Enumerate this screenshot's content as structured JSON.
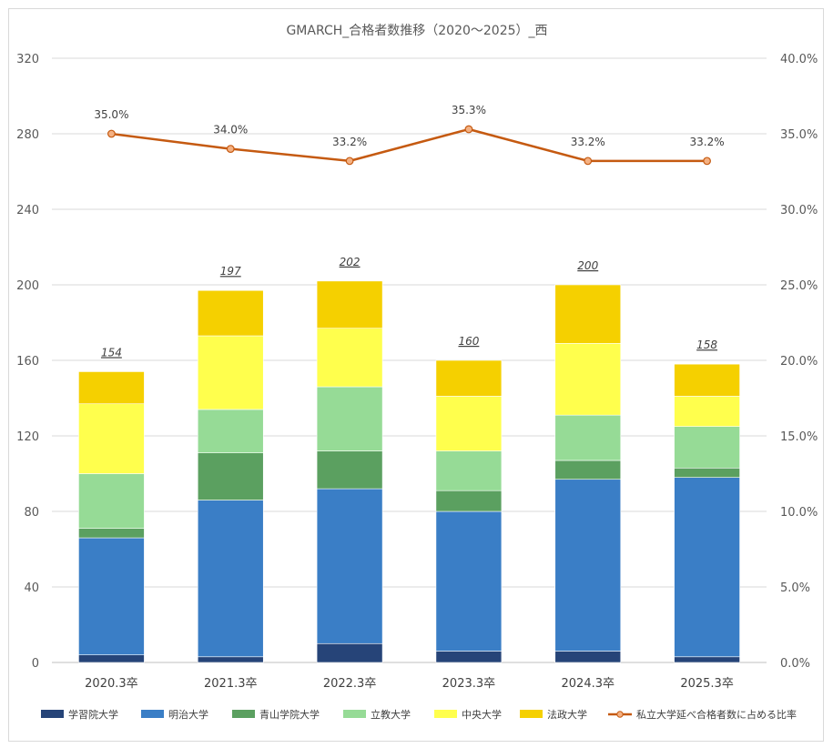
{
  "chart_data": {
    "type": "bar",
    "stacked": true,
    "title": "GMARCH_合格者数推移（2020～2025）_西",
    "categories": [
      "2020.3卒",
      "2021.3卒",
      "2022.3卒",
      "2023.3卒",
      "2024.3卒",
      "2025.3卒"
    ],
    "ylim": [
      0,
      320
    ],
    "yticks": [
      "0",
      "40",
      "80",
      "120",
      "160",
      "200",
      "240",
      "280",
      "320"
    ],
    "y2lim": [
      0,
      40
    ],
    "y2ticks": [
      "0.0%",
      "5.0%",
      "10.0%",
      "15.0%",
      "20.0%",
      "25.0%",
      "30.0%",
      "35.0%",
      "40.0%"
    ],
    "grid": true,
    "legend_position": "bottom",
    "series": [
      {
        "name": "学習院大学",
        "color": "#264478",
        "values": [
          4,
          3,
          10,
          6,
          6,
          3
        ]
      },
      {
        "name": "明治大学",
        "color": "#3a7ec6",
        "values": [
          62,
          83,
          82,
          74,
          91,
          95
        ]
      },
      {
        "name": "青山学院大学",
        "color": "#5ba060",
        "values": [
          5,
          25,
          20,
          11,
          10,
          5
        ]
      },
      {
        "name": "立教大学",
        "color": "#96db96",
        "values": [
          29,
          23,
          34,
          21,
          24,
          22
        ]
      },
      {
        "name": "中央大学",
        "color": "#ffff4d",
        "values": [
          37,
          39,
          31,
          29,
          38,
          16
        ]
      },
      {
        "name": "法政大学",
        "color": "#f5d000",
        "values": [
          17,
          24,
          25,
          19,
          31,
          17
        ]
      }
    ],
    "totals": [
      "154",
      "197",
      "202",
      "160",
      "200",
      "158"
    ],
    "line_series": {
      "name": "私立大学延べ合格者数に占める比率",
      "color": "#c55a11",
      "values": [
        35.0,
        34.0,
        33.2,
        35.3,
        33.2,
        33.2
      ],
      "labels": [
        "35.0%",
        "34.0%",
        "33.2%",
        "35.3%",
        "33.2%",
        "33.2%"
      ]
    }
  }
}
